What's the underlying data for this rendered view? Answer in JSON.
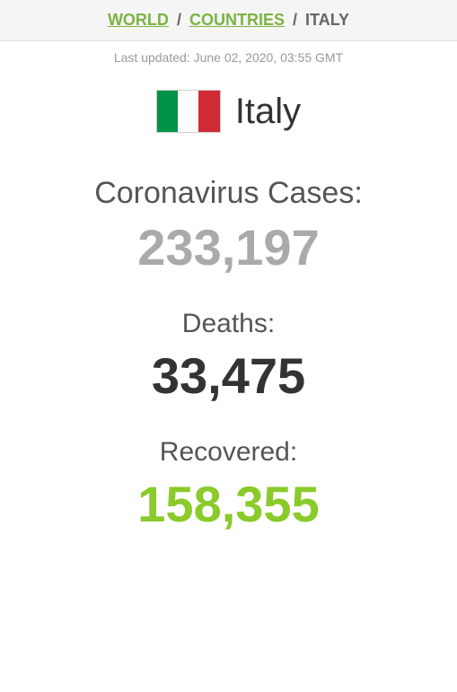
{
  "breadcrumb": {
    "world": "WORLD",
    "countries": "COUNTRIES",
    "current": "ITALY",
    "separator": "/"
  },
  "last_updated": "Last updated: June 02, 2020, 03:55 GMT",
  "country": {
    "name": "Italy",
    "flag_colors": [
      "#009246",
      "#ffffff",
      "#ce2b37"
    ]
  },
  "stats": {
    "cases": {
      "label": "Coronavirus Cases:",
      "value": "233,197",
      "label_color": "#555555",
      "value_color": "#aaaaaa"
    },
    "deaths": {
      "label": "Deaths:",
      "value": "33,475",
      "label_color": "#555555",
      "value_color": "#333333"
    },
    "recovered": {
      "label": "Recovered:",
      "value": "158,355",
      "label_color": "#555555",
      "value_color": "#8ACA2B"
    }
  },
  "colors": {
    "link": "#7cb342",
    "breadcrumb_bg": "#f5f5f5",
    "muted_text": "#999999"
  }
}
